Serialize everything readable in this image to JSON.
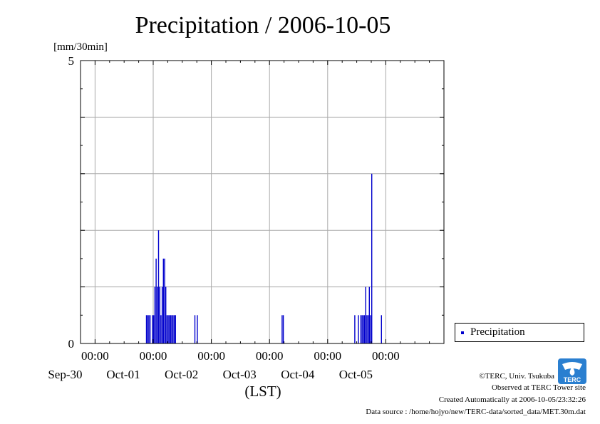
{
  "chart_data": {
    "type": "bar",
    "title": "Precipitation / 2006-10-05",
    "ylabel": "[mm/30min]",
    "xlabel": "(LST)",
    "ylim": [
      0,
      5
    ],
    "y_tick_labels": [
      "0",
      "5"
    ],
    "x_tick_labels": [
      {
        "time": "00:00",
        "date": "Sep-30"
      },
      {
        "time": "00:00",
        "date": "Oct-01"
      },
      {
        "time": "00:00",
        "date": "Oct-02"
      },
      {
        "time": "00:00",
        "date": "Oct-03"
      },
      {
        "time": "00:00",
        "date": "Oct-04"
      },
      {
        "time": "00:00",
        "date": "Oct-05"
      }
    ],
    "grid": true,
    "legend": {
      "position": "right",
      "entries": [
        "Precipitation"
      ]
    },
    "series": [
      {
        "name": "Precipitation",
        "color": "#0000cc",
        "x": [
          "2006-09-30 21:00",
          "2006-09-30 21:30",
          "2006-09-30 22:00",
          "2006-09-30 22:30",
          "2006-09-30 23:30",
          "2006-10-01 00:00",
          "2006-10-01 00:30",
          "2006-10-01 01:00",
          "2006-10-01 01:30",
          "2006-10-01 02:00",
          "2006-10-01 02:30",
          "2006-10-01 03:00",
          "2006-10-01 03:30",
          "2006-10-01 04:00",
          "2006-10-01 04:30",
          "2006-10-01 05:00",
          "2006-10-01 05:30",
          "2006-10-01 06:00",
          "2006-10-01 06:30",
          "2006-10-01 07:00",
          "2006-10-01 07:30",
          "2006-10-01 08:00",
          "2006-10-01 08:30",
          "2006-10-01 09:00",
          "2006-10-01 17:00",
          "2006-10-01 18:00",
          "2006-10-03 05:00",
          "2006-10-03 05:30",
          "2006-10-04 11:00",
          "2006-10-04 12:30",
          "2006-10-04 13:30",
          "2006-10-04 14:00",
          "2006-10-04 14:30",
          "2006-10-04 15:00",
          "2006-10-04 15:30",
          "2006-10-04 16:00",
          "2006-10-04 16:30",
          "2006-10-04 17:00",
          "2006-10-04 17:30",
          "2006-10-04 18:00",
          "2006-10-04 22:00"
        ],
        "values": [
          0.5,
          0.5,
          0.5,
          0.5,
          0.5,
          0.5,
          1.0,
          1.5,
          1.0,
          2.0,
          1.0,
          0.5,
          1.0,
          1.5,
          1.5,
          1.0,
          0.5,
          0.5,
          0.5,
          0.5,
          0.5,
          0.5,
          0.5,
          0.5,
          0.5,
          0.5,
          0.5,
          0.5,
          0.5,
          0.5,
          0.5,
          0.5,
          0.5,
          0.5,
          1.0,
          0.5,
          0.5,
          1.0,
          0.5,
          3.0,
          0.5
        ]
      }
    ]
  },
  "footer": {
    "copyright": "©TERC, Univ. Tsukuba",
    "site": "Observed at TERC Tower site",
    "created": "Created Automatically at 2006-10-05/23:32:26",
    "source": "Data source : /home/hojyo/new/TERC-data/sorted_data/MET.30m.dat"
  },
  "logo": {
    "text": "TERC"
  }
}
